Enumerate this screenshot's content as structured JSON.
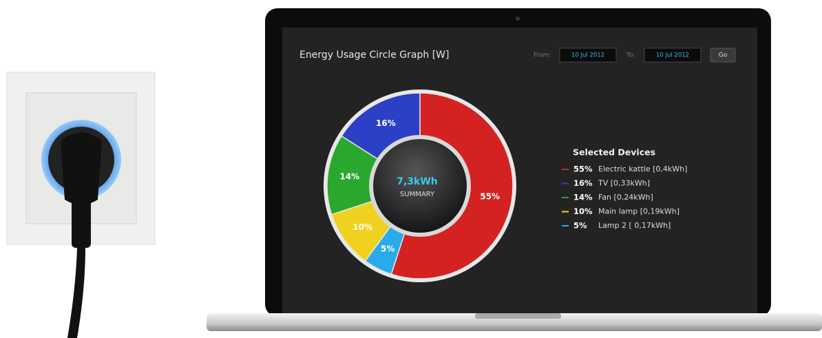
{
  "chart_data": {
    "type": "donut",
    "title": "Energy Usage Circle Graph [W]",
    "controls": {
      "from_label": "From:",
      "from_date": "10 Jul 2012",
      "to_label": "To:",
      "to_date": "10 Jul 2012",
      "button": "Go"
    },
    "center_value": "7,3kWh",
    "center_label": "SUMMARY",
    "legend_title": "Selected Devices",
    "series": [
      {
        "name": "Electric kattle [0,4kWh]",
        "color": "#d42222",
        "values": [
          55
        ],
        "value_labels": [
          "55%"
        ]
      },
      {
        "name": "TV [0,33kWh]",
        "color": "#2b40c4",
        "values": [
          16
        ],
        "value_labels": [
          "16%"
        ]
      },
      {
        "name": "Fan [0,24kWh]",
        "color": "#2aa82e",
        "values": [
          14
        ],
        "value_labels": [
          "14%"
        ]
      },
      {
        "name": "Main lamp [0,19kWh]",
        "color": "#f0d21e",
        "values": [
          10
        ],
        "value_labels": [
          "10%"
        ]
      },
      {
        "name": "Lamp 2 [ 0,17kWh]",
        "color": "#2aaae8",
        "values": [
          5
        ],
        "value_labels": [
          "5%"
        ]
      }
    ]
  }
}
